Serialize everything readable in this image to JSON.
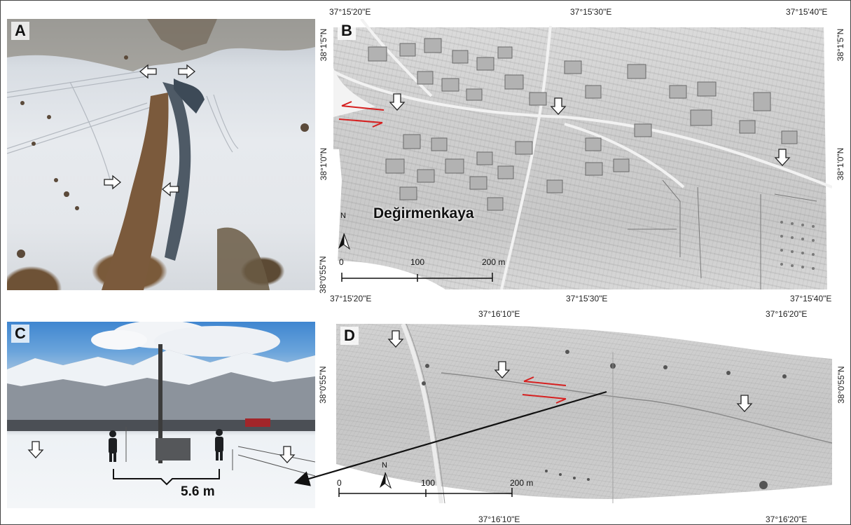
{
  "panels": {
    "a": {
      "label": "A"
    },
    "b": {
      "label": "B",
      "place": "Değirmenkaya",
      "scale": [
        "0",
        "100",
        "200 m"
      ],
      "north": "N"
    },
    "c": {
      "label": "C",
      "dimension": "5.6 m"
    },
    "d": {
      "label": "D",
      "scale": [
        "0",
        "100",
        "200 m"
      ],
      "north": "N"
    }
  },
  "coords": {
    "b_top": [
      "37°15'20\"E",
      "37°15'30\"E",
      "37°15'40\"E"
    ],
    "b_bottom": [
      "37°15'20\"E",
      "37°15'30\"E",
      "37°15'40\"E"
    ],
    "b_left": [
      "38°1'5\"N",
      "38°1'0\"N",
      "38°0'55\"N"
    ],
    "b_right": [
      "38°1'5\"N",
      "38°1'0\"N"
    ],
    "d_top": [
      "37°16'10\"E",
      "37°16'20\"E"
    ],
    "d_bottom": [
      "37°16'10\"E",
      "37°16'20\"E"
    ],
    "d_left": [
      "38°0'55\"N"
    ],
    "d_right": [
      "38°0'55\"N"
    ]
  },
  "colors": {
    "offset_arrow": "#d62020",
    "marker_fill": "#ffffff",
    "marker_stroke": "#222222",
    "leader": "#111111"
  },
  "icons": {
    "marker": "white-arrow-icon",
    "offset": "offset-arrows-icon",
    "north": "north-arrow-icon"
  }
}
